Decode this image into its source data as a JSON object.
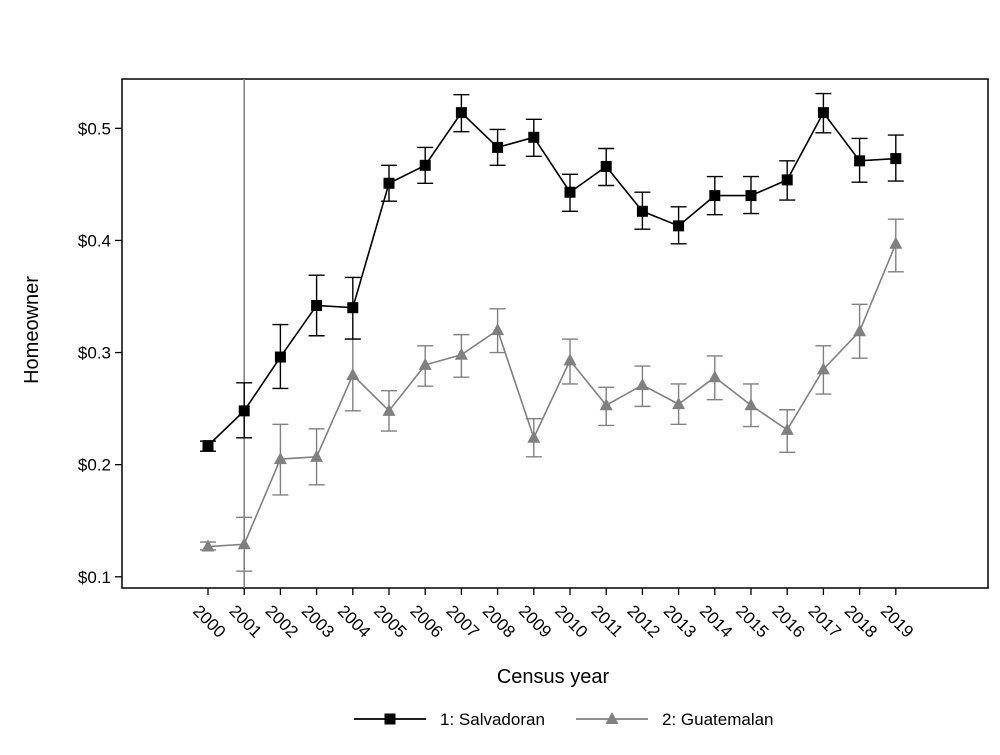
{
  "chart_data": {
    "type": "line",
    "title": "",
    "xlabel": "Census year",
    "ylabel": "Homeowner",
    "categories": [
      "2000",
      "2001",
      "2002",
      "2003",
      "2004",
      "2005",
      "2006",
      "2007",
      "2008",
      "2009",
      "2010",
      "2011",
      "2012",
      "2013",
      "2014",
      "2015",
      "2016",
      "2017",
      "2018",
      "2019"
    ],
    "y_ticks": [
      0.1,
      0.2,
      0.3,
      0.4,
      0.5
    ],
    "y_tick_labels": [
      "$0.1",
      "$0.2",
      "$0.3",
      "$0.4",
      "$0.5"
    ],
    "ylim": [
      0.09,
      0.544
    ],
    "reference_line_x": "2001",
    "grid": false,
    "legend_position": "bottom",
    "series": [
      {
        "name": "1: Salvadoran",
        "color": "#000000",
        "marker": "square",
        "values": [
          0.217,
          0.248,
          0.296,
          0.342,
          0.34,
          0.451,
          0.467,
          0.514,
          0.483,
          0.492,
          0.443,
          0.466,
          0.426,
          0.413,
          0.44,
          0.44,
          0.454,
          0.514,
          0.471,
          0.473
        ],
        "ci_low": [
          0.212,
          0.224,
          0.268,
          0.315,
          0.312,
          0.435,
          0.451,
          0.497,
          0.467,
          0.475,
          0.426,
          0.449,
          0.41,
          0.397,
          0.423,
          0.424,
          0.436,
          0.496,
          0.452,
          0.453
        ],
        "ci_high": [
          0.221,
          0.273,
          0.325,
          0.369,
          0.367,
          0.467,
          0.483,
          0.53,
          0.499,
          0.508,
          0.459,
          0.482,
          0.443,
          0.43,
          0.457,
          0.457,
          0.471,
          0.531,
          0.491,
          0.494
        ]
      },
      {
        "name": "2: Guatemalan",
        "color": "#808080",
        "marker": "triangle",
        "values": [
          0.127,
          0.129,
          0.205,
          0.207,
          0.28,
          0.248,
          0.289,
          0.298,
          0.32,
          0.224,
          0.293,
          0.253,
          0.271,
          0.254,
          0.278,
          0.253,
          0.231,
          0.285,
          0.319,
          0.397
        ],
        "ci_low": [
          0.124,
          0.105,
          0.173,
          0.182,
          0.248,
          0.23,
          0.27,
          0.278,
          0.3,
          0.207,
          0.272,
          0.235,
          0.252,
          0.236,
          0.258,
          0.234,
          0.211,
          0.263,
          0.295,
          0.372
        ],
        "ci_high": [
          0.131,
          0.153,
          0.236,
          0.232,
          0.312,
          0.266,
          0.306,
          0.316,
          0.339,
          0.241,
          0.312,
          0.269,
          0.288,
          0.272,
          0.297,
          0.272,
          0.249,
          0.306,
          0.343,
          0.419
        ]
      }
    ]
  }
}
